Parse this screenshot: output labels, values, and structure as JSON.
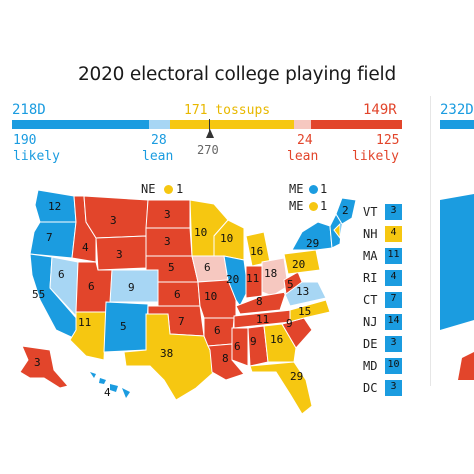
{
  "title": "2020 electoral college playing field",
  "colors": {
    "blue": "#1b9ce0",
    "light_blue": "#a7d6f4",
    "yellow": "#f6c711",
    "pink": "#f6c8c0",
    "red": "#e2452b"
  },
  "summary": {
    "dem_total": "218D",
    "tossups": "171 tossups",
    "rep_total": "149R",
    "threshold": "270"
  },
  "categories": [
    {
      "num": "190",
      "label": "likely",
      "color": "#1b9ce0"
    },
    {
      "num": "28",
      "label": "lean",
      "color": "#a7d6f4"
    },
    {
      "num": "24",
      "label": "lean",
      "color": "#f6c8c0"
    },
    {
      "num": "125",
      "label": "likely",
      "color": "#e2452b"
    }
  ],
  "districts": {
    "ne_label": "NE",
    "ne_value": "1",
    "me_label": "ME",
    "me1_value": "1",
    "me2_value": "1"
  },
  "small_states": [
    {
      "abbr": "VT",
      "ev": "3",
      "color": "#1b9ce0"
    },
    {
      "abbr": "NH",
      "ev": "4",
      "color": "#f6c711"
    },
    {
      "abbr": "MA",
      "ev": "11",
      "color": "#1b9ce0"
    },
    {
      "abbr": "RI",
      "ev": "4",
      "color": "#1b9ce0"
    },
    {
      "abbr": "CT",
      "ev": "7",
      "color": "#1b9ce0"
    },
    {
      "abbr": "NJ",
      "ev": "14",
      "color": "#1b9ce0"
    },
    {
      "abbr": "DE",
      "ev": "3",
      "color": "#1b9ce0"
    },
    {
      "abbr": "MD",
      "ev": "10",
      "color": "#1b9ce0"
    },
    {
      "abbr": "DC",
      "ev": "3",
      "color": "#1b9ce0"
    }
  ],
  "state_values": {
    "WA": "12",
    "OR": "7",
    "CA": "55",
    "NV": "6",
    "ID": "4",
    "MT": "3",
    "WY": "3",
    "UT": "6",
    "CO": "9",
    "AZ": "11",
    "NM": "5",
    "ND": "3",
    "SD": "3",
    "NE": "5",
    "KS": "6",
    "OK": "7",
    "TX": "38",
    "MN": "10",
    "IA": "6",
    "MO": "10",
    "AR": "6",
    "LA": "8",
    "WI": "10",
    "IL": "20",
    "MI": "16",
    "IN": "11",
    "OH": "18",
    "KY": "8",
    "TN": "11",
    "MS": "6",
    "AL": "9",
    "GA": "16",
    "FL": "29",
    "SC": "9",
    "NC": "15",
    "VA": "13",
    "WV": "5",
    "PA": "20",
    "NY": "29",
    "ME": "2",
    "AK": "3",
    "HI": "4"
  },
  "next_panel_partial": "232D"
}
